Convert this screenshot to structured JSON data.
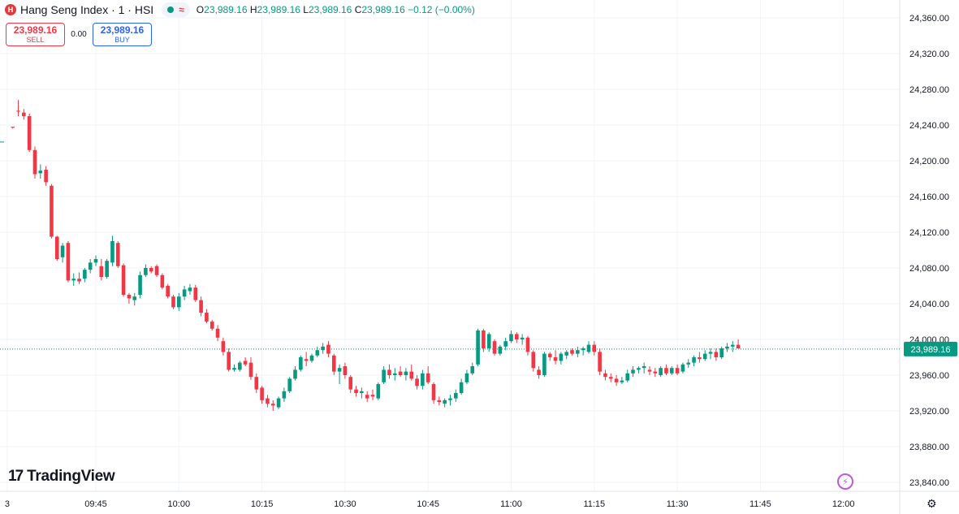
{
  "header": {
    "title": "Hang Seng Index · 1 · HSI",
    "logo_text": "H",
    "ohlc": {
      "o_label": "O",
      "o": "23,989.16",
      "h_label": "H",
      "h": "23,989.16",
      "l_label": "L",
      "l": "23,989.16",
      "c_label": "C",
      "c": "23,989.16",
      "change": "−0.12 (−0.00%)"
    }
  },
  "trade": {
    "sell_price": "23,989.16",
    "sell_label": "SELL",
    "spread": "0.00",
    "buy_price": "23,989.16",
    "buy_label": "BUY"
  },
  "brand": {
    "name": "TradingView"
  },
  "colors": {
    "up": "#089981",
    "down": "#f23645",
    "last_price_bg": "#089981"
  },
  "chart_data": {
    "type": "candlestick",
    "title": "Hang Seng Index · 1 · HSI",
    "yticks": [
      23840,
      23880,
      23920,
      23960,
      24000,
      24040,
      24080,
      24120,
      24160,
      24200,
      24240,
      24280,
      24320,
      24360
    ],
    "ytick_labels": [
      "23,840.00",
      "23,880.00",
      "23,920.00",
      "23,960.00",
      "24,000.00",
      "24,040.00",
      "24,080.00",
      "24,120.00",
      "24,160.00",
      "24,200.00",
      "24,240.00",
      "24,280.00",
      "24,320.00",
      "24,360.00"
    ],
    "ylim": [
      23835,
      24365
    ],
    "xticks": [
      {
        "minute": -1,
        "label": "3"
      },
      {
        "minute": 15,
        "label": "09:45"
      },
      {
        "minute": 30,
        "label": "10:00"
      },
      {
        "minute": 45,
        "label": "10:15"
      },
      {
        "minute": 60,
        "label": "10:30"
      },
      {
        "minute": 75,
        "label": "10:45"
      },
      {
        "minute": 90,
        "label": "11:00"
      },
      {
        "minute": 105,
        "label": "11:15"
      },
      {
        "minute": 120,
        "label": "11:30"
      },
      {
        "minute": 135,
        "label": "11:45"
      },
      {
        "minute": 150,
        "label": "12:00"
      }
    ],
    "x_minute_start": "09:30",
    "last_price": 23989.16,
    "last_price_label": "23,989.16",
    "grid": true,
    "candles": [
      [
        24238,
        24238,
        24236,
        24237
      ],
      [
        24256,
        24268,
        24250,
        24255
      ],
      [
        24254,
        24258,
        24246,
        24250
      ],
      [
        24250,
        24253,
        24210,
        24212
      ],
      [
        24212,
        24216,
        24180,
        24185
      ],
      [
        24186,
        24196,
        24180,
        24189
      ],
      [
        24190,
        24194,
        24172,
        24176
      ],
      [
        24172,
        24174,
        24113,
        24115
      ],
      [
        24115,
        24116,
        24088,
        24090
      ],
      [
        24092,
        24108,
        24086,
        24105
      ],
      [
        24108,
        24110,
        24064,
        24066
      ],
      [
        24066,
        24074,
        24060,
        24068
      ],
      [
        24068,
        24075,
        24062,
        24065
      ],
      [
        24068,
        24080,
        24064,
        24078
      ],
      [
        24078,
        24090,
        24074,
        24086
      ],
      [
        24086,
        24094,
        24082,
        24090
      ],
      [
        24082,
        24090,
        24066,
        24070
      ],
      [
        24070,
        24090,
        24068,
        24088
      ],
      [
        24086,
        24116,
        24082,
        24110
      ],
      [
        24108,
        24110,
        24080,
        24082
      ],
      [
        24083,
        24085,
        24048,
        24050
      ],
      [
        24050,
        24052,
        24040,
        24046
      ],
      [
        24044,
        24052,
        24038,
        24048
      ],
      [
        24050,
        24076,
        24046,
        24072
      ],
      [
        24072,
        24084,
        24070,
        24080
      ],
      [
        24080,
        24082,
        24074,
        24076
      ],
      [
        24082,
        24084,
        24070,
        24072
      ],
      [
        24072,
        24074,
        24056,
        24058
      ],
      [
        24060,
        24062,
        24046,
        24048
      ],
      [
        24048,
        24050,
        24034,
        24036
      ],
      [
        24036,
        24052,
        24032,
        24048
      ],
      [
        24048,
        24060,
        24044,
        24056
      ],
      [
        24054,
        24062,
        24050,
        24058
      ],
      [
        24058,
        24061,
        24042,
        24044
      ],
      [
        24044,
        24048,
        24026,
        24030
      ],
      [
        24030,
        24034,
        24018,
        24020
      ],
      [
        24020,
        24022,
        24010,
        24012
      ],
      [
        24012,
        24016,
        23998,
        24002
      ],
      [
        23998,
        24002,
        23982,
        23986
      ],
      [
        23986,
        23990,
        23964,
        23966
      ],
      [
        23966,
        23972,
        23964,
        23968
      ],
      [
        23966,
        23976,
        23964,
        23974
      ],
      [
        23976,
        23980,
        23970,
        23972
      ],
      [
        23974,
        23980,
        23955,
        23958
      ],
      [
        23958,
        23962,
        23940,
        23944
      ],
      [
        23946,
        23948,
        23928,
        23932
      ],
      [
        23934,
        23938,
        23924,
        23928
      ],
      [
        23928,
        23932,
        23920,
        23926
      ],
      [
        23924,
        23936,
        23922,
        23934
      ],
      [
        23934,
        23946,
        23930,
        23942
      ],
      [
        23942,
        23958,
        23940,
        23956
      ],
      [
        23956,
        23970,
        23954,
        23966
      ],
      [
        23966,
        23982,
        23964,
        23980
      ],
      [
        23978,
        23986,
        23970,
        23976
      ],
      [
        23976,
        23984,
        23974,
        23982
      ],
      [
        23982,
        23992,
        23980,
        23988
      ],
      [
        23988,
        23996,
        23984,
        23992
      ],
      [
        23994,
        23998,
        23980,
        23984
      ],
      [
        23982,
        23984,
        23960,
        23964
      ],
      [
        23964,
        23972,
        23950,
        23968
      ],
      [
        23970,
        23974,
        23956,
        23960
      ],
      [
        23958,
        23960,
        23940,
        23944
      ],
      [
        23944,
        23948,
        23936,
        23940
      ],
      [
        23940,
        23946,
        23934,
        23942
      ],
      [
        23938,
        23942,
        23930,
        23934
      ],
      [
        23938,
        23944,
        23932,
        23936
      ],
      [
        23934,
        23952,
        23932,
        23950
      ],
      [
        23952,
        23970,
        23950,
        23966
      ],
      [
        23966,
        23972,
        23956,
        23960
      ],
      [
        23960,
        23968,
        23954,
        23962
      ],
      [
        23964,
        23970,
        23958,
        23960
      ],
      [
        23960,
        23968,
        23954,
        23964
      ],
      [
        23964,
        23972,
        23954,
        23956
      ],
      [
        23956,
        23960,
        23944,
        23948
      ],
      [
        23948,
        23966,
        23944,
        23962
      ],
      [
        23962,
        23970,
        23950,
        23952
      ],
      [
        23950,
        23952,
        23928,
        23932
      ],
      [
        23932,
        23936,
        23926,
        23930
      ],
      [
        23928,
        23934,
        23924,
        23932
      ],
      [
        23932,
        23938,
        23926,
        23934
      ],
      [
        23934,
        23944,
        23930,
        23940
      ],
      [
        23940,
        23956,
        23938,
        23952
      ],
      [
        23952,
        23966,
        23950,
        23962
      ],
      [
        23962,
        23974,
        23960,
        23970
      ],
      [
        23972,
        24012,
        23970,
        24010
      ],
      [
        24010,
        24012,
        23986,
        23990
      ],
      [
        23990,
        24008,
        23986,
        24006
      ],
      [
        23998,
        24000,
        23982,
        23984
      ],
      [
        23984,
        23994,
        23982,
        23992
      ],
      [
        23992,
        24002,
        23988,
        23998
      ],
      [
        23998,
        24010,
        23996,
        24006
      ],
      [
        24006,
        24008,
        23996,
        24000
      ],
      [
        24000,
        24006,
        23994,
        24002
      ],
      [
        24002,
        24004,
        23982,
        23986
      ],
      [
        23986,
        23988,
        23964,
        23968
      ],
      [
        23966,
        23970,
        23956,
        23960
      ],
      [
        23960,
        23986,
        23958,
        23984
      ],
      [
        23984,
        23986,
        23976,
        23980
      ],
      [
        23980,
        23988,
        23972,
        23976
      ],
      [
        23976,
        23986,
        23972,
        23984
      ],
      [
        23982,
        23988,
        23978,
        23986
      ],
      [
        23988,
        23990,
        23982,
        23984
      ],
      [
        23984,
        23992,
        23980,
        23988
      ],
      [
        23988,
        23992,
        23982,
        23990
      ],
      [
        23986,
        23998,
        23984,
        23994
      ],
      [
        23994,
        23998,
        23982,
        23986
      ],
      [
        23986,
        23990,
        23960,
        23964
      ],
      [
        23962,
        23966,
        23954,
        23958
      ],
      [
        23958,
        23962,
        23952,
        23956
      ],
      [
        23956,
        23960,
        23948,
        23952
      ],
      [
        23952,
        23958,
        23950,
        23954
      ],
      [
        23954,
        23966,
        23952,
        23962
      ],
      [
        23962,
        23970,
        23958,
        23966
      ],
      [
        23966,
        23970,
        23962,
        23968
      ],
      [
        23968,
        23974,
        23962,
        23970
      ],
      [
        23966,
        23970,
        23960,
        23964
      ],
      [
        23964,
        23968,
        23958,
        23962
      ],
      [
        23960,
        23970,
        23958,
        23968
      ],
      [
        23968,
        23972,
        23960,
        23962
      ],
      [
        23962,
        23970,
        23960,
        23968
      ],
      [
        23968,
        23972,
        23960,
        23962
      ],
      [
        23964,
        23974,
        23962,
        23972
      ],
      [
        23972,
        23978,
        23968,
        23974
      ],
      [
        23974,
        23982,
        23970,
        23980
      ],
      [
        23980,
        23986,
        23974,
        23978
      ],
      [
        23978,
        23988,
        23976,
        23984
      ],
      [
        23984,
        23990,
        23978,
        23986
      ],
      [
        23986,
        23990,
        23976,
        23980
      ],
      [
        23980,
        23992,
        23978,
        23990
      ],
      [
        23990,
        23996,
        23986,
        23992
      ],
      [
        23992,
        23998,
        23986,
        23994
      ],
      [
        23994,
        24000,
        23990,
        23990
      ]
    ]
  }
}
